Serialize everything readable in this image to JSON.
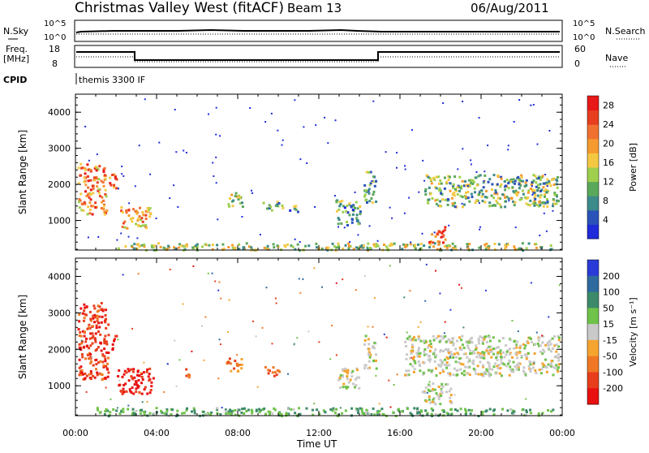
{
  "header": {
    "station": "Christmas Valley West (fitACF)",
    "beam": "Beam 13",
    "date": "06/Aug/2011"
  },
  "top_strips": {
    "nsky_label": "N.Sky",
    "nsky_ticks": [
      "10^5",
      "10^0"
    ],
    "nsearch_label": "N.Search",
    "nsearch_ticks": [
      "10^5",
      "10^0"
    ],
    "freq_label_1": "Freq.",
    "freq_label_2": "[MHz]",
    "freq_ticks": [
      "18",
      "8"
    ],
    "nave_label": "Nave",
    "nave_ticks": [
      "60",
      "0"
    ],
    "cpid_label": "CPID",
    "cpid_text": "themis 3300 IF"
  },
  "chart_data": [
    {
      "type": "heatmap",
      "ylabel": "Slant Range [km]",
      "colorbar_label": "Power [dB]",
      "yticks": [
        1000,
        2000,
        3000,
        4000
      ],
      "ylim": [
        180,
        4500
      ],
      "colorbar_ticks": [
        4,
        8,
        12,
        16,
        20,
        24,
        28
      ],
      "colorbar_range": [
        0,
        30
      ],
      "colors": [
        "#1f2bd8",
        "#2a52b8",
        "#3d8a8a",
        "#5aa85a",
        "#9ed04e",
        "#f5c842",
        "#f59a2f",
        "#f07030",
        "#e83e20",
        "#e81818"
      ],
      "regions": [
        {
          "t": [
            0.1,
            1.5
          ],
          "r": [
            1200,
            2600
          ],
          "level": 0.7
        },
        {
          "t": [
            1.6,
            2.0
          ],
          "r": [
            1900,
            2400
          ],
          "level": 0.8
        },
        {
          "t": [
            2.2,
            3.7
          ],
          "r": [
            800,
            1400
          ],
          "level": 0.65
        },
        {
          "t": [
            7.4,
            8.2
          ],
          "r": [
            1400,
            1800
          ],
          "level": 0.5
        },
        {
          "t": [
            9.2,
            10.2
          ],
          "r": [
            1300,
            1550
          ],
          "level": 0.4
        },
        {
          "t": [
            10.5,
            11.0
          ],
          "r": [
            1250,
            1450
          ],
          "level": 0.3
        },
        {
          "t": [
            12.8,
            14.0
          ],
          "r": [
            900,
            1600
          ],
          "level": 0.3
        },
        {
          "t": [
            14.2,
            14.8
          ],
          "r": [
            1500,
            2400
          ],
          "level": 0.35
        },
        {
          "t": [
            17.4,
            18.2
          ],
          "r": [
            400,
            900
          ],
          "level": 0.85
        },
        {
          "t": [
            17.2,
            23.8
          ],
          "r": [
            1400,
            2300
          ],
          "level": 0.4
        },
        {
          "t": [
            2.0,
            23.5
          ],
          "r": [
            200,
            400
          ],
          "level": 0.45
        }
      ]
    },
    {
      "type": "heatmap",
      "ylabel": "Slant Range [km]",
      "colorbar_label": "Velocity [m s⁻¹]",
      "yticks": [
        1000,
        2000,
        3000,
        4000
      ],
      "ylim": [
        180,
        4500
      ],
      "colorbar_ticks": [
        200,
        100,
        50,
        15,
        -15,
        -50,
        -100,
        -200
      ],
      "colors": [
        "#2a3ad8",
        "#2f6a9f",
        "#3c8a6a",
        "#6fc24a",
        "#c9c9c9",
        "#f6a430",
        "#f07824",
        "#e83e1c",
        "#e81010"
      ],
      "regions": [
        {
          "t": [
            0.1,
            1.6
          ],
          "r": [
            1200,
            3300
          ],
          "level": -0.7
        },
        {
          "t": [
            1.7,
            2.0
          ],
          "r": [
            2000,
            2400
          ],
          "level": -0.9
        },
        {
          "t": [
            2.0,
            3.8
          ],
          "r": [
            800,
            1500
          ],
          "level": -0.9
        },
        {
          "t": [
            5.3,
            5.6
          ],
          "r": [
            1200,
            1500
          ],
          "level": -0.6
        },
        {
          "t": [
            7.4,
            8.2
          ],
          "r": [
            1400,
            1800
          ],
          "level": -0.4
        },
        {
          "t": [
            9.3,
            10.2
          ],
          "r": [
            1300,
            1550
          ],
          "level": -0.5
        },
        {
          "t": [
            12.9,
            14.0
          ],
          "r": [
            900,
            1500
          ],
          "level": 0.0
        },
        {
          "t": [
            14.2,
            14.8
          ],
          "r": [
            1500,
            2400
          ],
          "level": 0.0
        },
        {
          "t": [
            16.2,
            23.8
          ],
          "r": [
            1300,
            2400
          ],
          "level": 0.0
        },
        {
          "t": [
            17.0,
            18.5
          ],
          "r": [
            500,
            1100
          ],
          "level": 0.0
        },
        {
          "t": [
            1.0,
            23.5
          ],
          "r": [
            200,
            420
          ],
          "level": 0.3
        }
      ]
    }
  ],
  "x_axis": {
    "ticks": [
      "00:00",
      "04:00",
      "08:00",
      "12:00",
      "16:00",
      "20:00",
      "00:00"
    ],
    "label": "Time UT"
  }
}
